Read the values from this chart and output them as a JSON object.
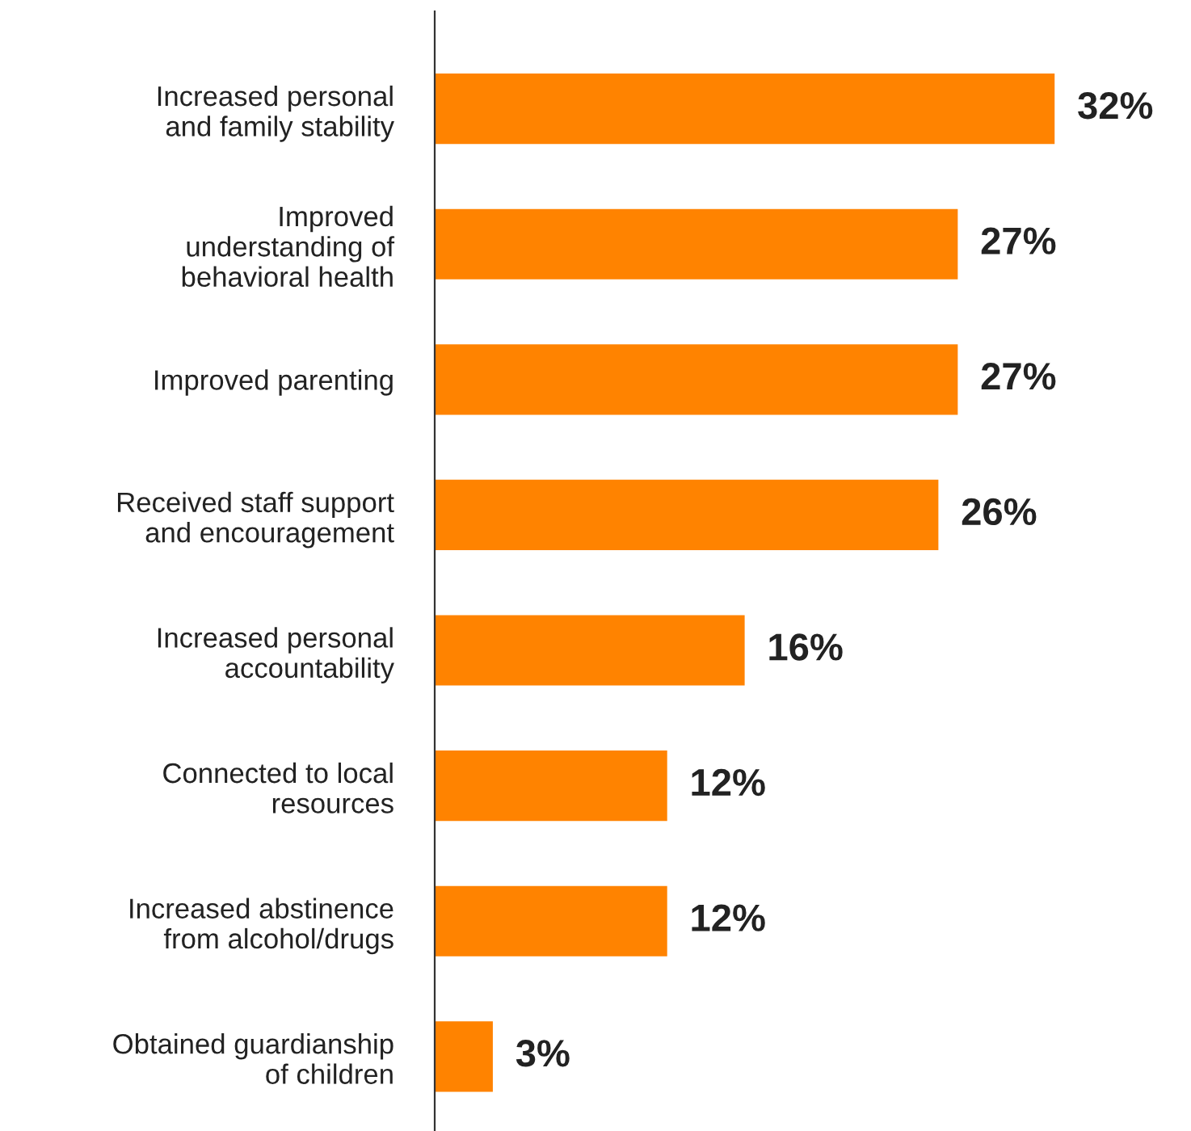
{
  "chart_data": {
    "type": "bar",
    "orientation": "horizontal",
    "categories": [
      "Increased personal\nand family stability",
      "Improved\nunderstanding of\nbehavioral health",
      "Improved parenting",
      "Received staff support\nand encouragement",
      "Increased personal\naccountability",
      "Connected to local\nresources",
      "Increased abstinence\nfrom alcohol/drugs",
      "Obtained guardianship\nof children"
    ],
    "values": [
      32,
      27,
      27,
      26,
      16,
      12,
      12,
      3
    ],
    "value_labels": [
      "32%",
      "27%",
      "27%",
      "26%",
      "16%",
      "12%",
      "12%",
      "3%"
    ],
    "color": "#ff8300",
    "grid": false,
    "legend": false
  }
}
